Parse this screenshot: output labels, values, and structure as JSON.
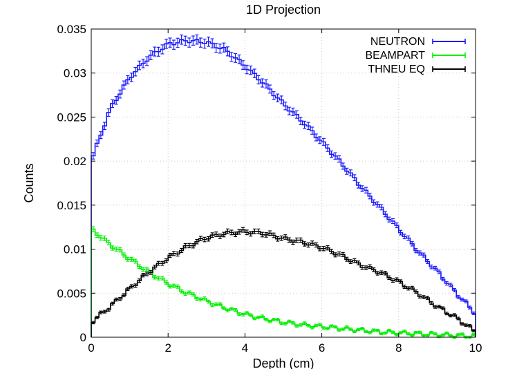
{
  "chart_data": {
    "type": "line",
    "title": "1D Projection",
    "xlabel": "Depth (cm)",
    "ylabel": "Counts",
    "xlim": [
      0,
      10
    ],
    "ylim": [
      0,
      0.035
    ],
    "xticks": [
      0,
      2,
      4,
      6,
      8,
      10
    ],
    "xtick_labels": [
      "0",
      "2",
      "4",
      "6",
      "8",
      "10"
    ],
    "yticks": [
      0,
      0.005,
      0.01,
      0.015,
      0.02,
      0.025,
      0.03,
      0.035
    ],
    "ytick_labels": [
      "0",
      "0.005",
      "0.01",
      "0.015",
      "0.02",
      "0.025",
      "0.03",
      "0.035"
    ],
    "grid": true,
    "legend_position": "top-right",
    "step_style": "histogram-steps-with-error-bars",
    "x": [
      0,
      0.5,
      1,
      1.5,
      2,
      2.5,
      3,
      3.5,
      4,
      4.5,
      5,
      5.5,
      6,
      6.5,
      7,
      7.5,
      8,
      8.5,
      9,
      9.5,
      10
    ],
    "series": [
      {
        "name": "NEUTRON",
        "color": "#1a1aff",
        "values": [
          0.02,
          0.026,
          0.0295,
          0.0318,
          0.0333,
          0.0337,
          0.0335,
          0.0326,
          0.0308,
          0.0288,
          0.0265,
          0.0245,
          0.0222,
          0.0198,
          0.0172,
          0.0148,
          0.0123,
          0.0098,
          0.0075,
          0.005,
          0.0027
        ]
      },
      {
        "name": "BEAMPART",
        "color": "#00ee00",
        "values": [
          0.0123,
          0.0105,
          0.0089,
          0.0074,
          0.0061,
          0.005,
          0.0041,
          0.0033,
          0.0026,
          0.0021,
          0.0017,
          0.0014,
          0.0012,
          0.001,
          0.0008,
          0.0006,
          0.0005,
          0.0004,
          0.0003,
          0.0002,
          0.0001
        ]
      },
      {
        "name": "THNEU EQ",
        "color": "#000000",
        "values": [
          0.0017,
          0.0035,
          0.0055,
          0.0074,
          0.009,
          0.0103,
          0.0113,
          0.0118,
          0.012,
          0.0118,
          0.0112,
          0.0108,
          0.0102,
          0.0093,
          0.0082,
          0.0074,
          0.0063,
          0.005,
          0.0035,
          0.0022,
          0.0006
        ]
      }
    ]
  }
}
